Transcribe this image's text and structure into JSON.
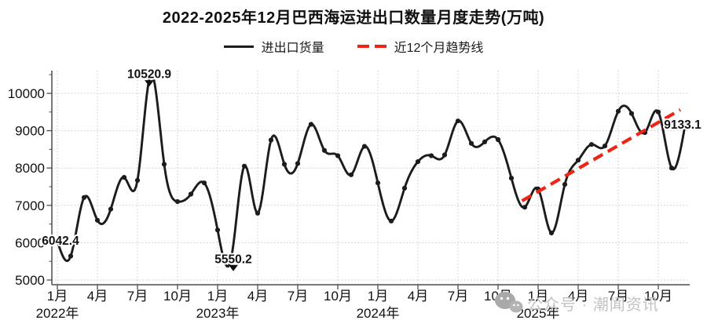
{
  "title": "2022-2025年12月巴西海运进出口数量月度走势(万吨)",
  "legend": {
    "series_label": "进出口货量",
    "trend_label": "近12个月趋势线"
  },
  "watermark": {
    "icon": "wechat-icon",
    "text": "公众号 · 潮闻资讯"
  },
  "chart_data": {
    "type": "line",
    "title": "2022-2025年12月巴西海运进出口数量月度走势(万吨)",
    "xlabel": "",
    "ylabel": "",
    "ylim": [
      5000,
      10700
    ],
    "y_ticks": [
      5000,
      6000,
      7000,
      8000,
      9000,
      10000
    ],
    "y_minor_ticks": [
      5500,
      6500,
      7500,
      8500,
      9500,
      10500
    ],
    "grid": "dotted",
    "legend_position": "top-center",
    "year_labels": [
      "2022年",
      "2023年",
      "2024年",
      "2025年"
    ],
    "month_tick_labels": [
      "1月",
      "4月",
      "7月",
      "10月"
    ],
    "series": [
      {
        "name": "进出口货量",
        "color": "#1c1c1c",
        "marker": "dot",
        "values": [
          6042.4,
          5640,
          7210,
          6600,
          6900,
          7750,
          7670,
          10520.9,
          8100,
          7100,
          7300,
          7600,
          6340,
          5550.2,
          8050,
          6790,
          8750,
          8100,
          8120,
          9170,
          8470,
          8330,
          7820,
          8580,
          7600,
          6580,
          7460,
          8170,
          8330,
          8350,
          9260,
          8660,
          8700,
          8760,
          7730,
          6950,
          7440,
          6260,
          7560,
          8210,
          8630,
          8590,
          9520,
          9460,
          8950,
          9500,
          8000,
          9133.1
        ]
      }
    ],
    "trend": {
      "name": "近12个月趋势线",
      "color": "#ee2415",
      "start_month_index": 34.8,
      "start_value": 7120,
      "end_month_index": 46.65,
      "end_value": 9560
    },
    "annotations": [
      {
        "label": "6042.4",
        "month_index": 0,
        "dx": 4,
        "dy": -1,
        "pointer": false
      },
      {
        "label": "10520.9",
        "month_index": 7,
        "dx": -2,
        "dy": 0,
        "pointer": true
      },
      {
        "label": "5550.2",
        "month_index": 13,
        "dx": 3,
        "dy": -1,
        "pointer": true
      },
      {
        "label": "9133.1",
        "month_index": 47,
        "dx": -3,
        "dy": -2,
        "pointer": false
      }
    ],
    "colors": {
      "grid": "#c9c9c9",
      "spine": "#4d4d4d",
      "tick_text": "#111111"
    }
  }
}
